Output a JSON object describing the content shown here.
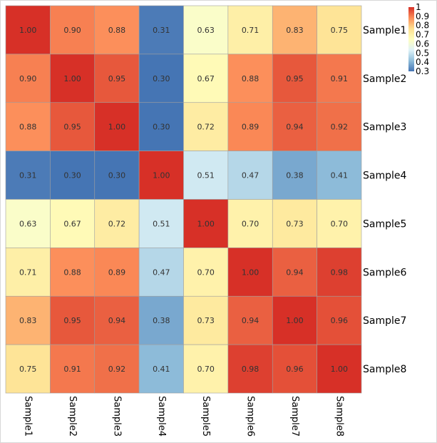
{
  "chart_data": {
    "type": "heatmap",
    "rows": [
      "Sample1",
      "Sample2",
      "Sample3",
      "Sample4",
      "Sample5",
      "Sample6",
      "Sample7",
      "Sample8"
    ],
    "columns": [
      "Sample1",
      "Sample2",
      "Sample3",
      "Sample4",
      "Sample5",
      "Sample6",
      "Sample7",
      "Sample8"
    ],
    "values": [
      [
        1.0,
        0.9,
        0.88,
        0.31,
        0.63,
        0.71,
        0.83,
        0.75
      ],
      [
        0.9,
        1.0,
        0.95,
        0.3,
        0.67,
        0.88,
        0.95,
        0.91
      ],
      [
        0.88,
        0.95,
        1.0,
        0.3,
        0.72,
        0.89,
        0.94,
        0.92
      ],
      [
        0.31,
        0.3,
        0.3,
        1.0,
        0.51,
        0.47,
        0.38,
        0.41
      ],
      [
        0.63,
        0.67,
        0.72,
        0.51,
        1.0,
        0.7,
        0.73,
        0.7
      ],
      [
        0.71,
        0.88,
        0.89,
        0.47,
        0.7,
        1.0,
        0.94,
        0.98
      ],
      [
        0.83,
        0.95,
        0.94,
        0.38,
        0.73,
        0.94,
        1.0,
        0.96
      ],
      [
        0.75,
        0.91,
        0.92,
        0.41,
        0.7,
        0.98,
        0.96,
        1.0
      ]
    ],
    "color_scale": {
      "range": [
        0.3,
        1.0
      ],
      "stops": [
        "#4575b4",
        "#91bfdb",
        "#e0f3f8",
        "#ffffbf",
        "#fee090",
        "#fc8d59",
        "#d73027"
      ],
      "legend_ticks": [
        "1",
        "0.9",
        "0.8",
        "0.7",
        "0.6",
        "0.5",
        "0.4",
        "0.3"
      ]
    },
    "legend_placement": "top-right",
    "title": "",
    "xlabel": "",
    "ylabel": ""
  }
}
